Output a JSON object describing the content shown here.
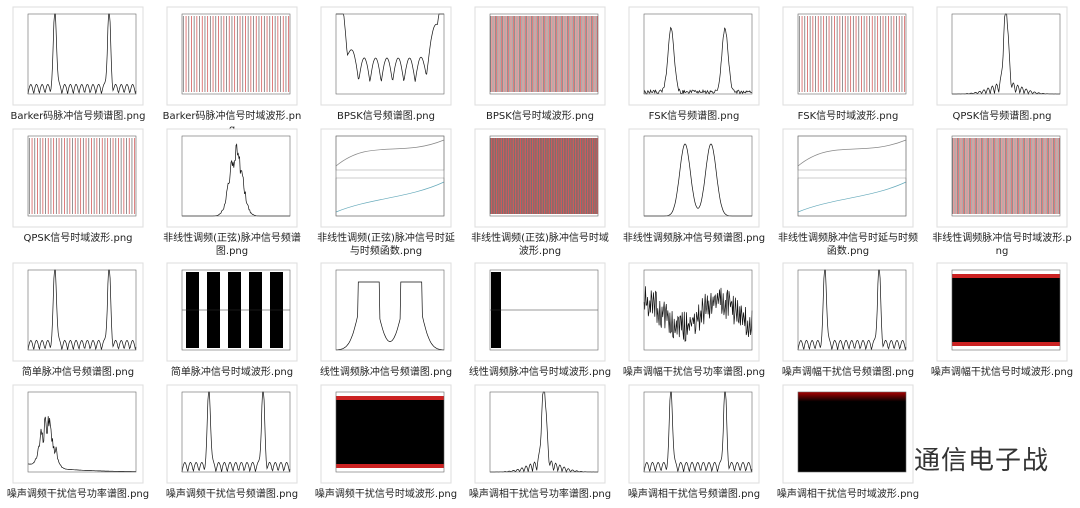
{
  "files": [
    "Barker码脉冲信号频谱图.png",
    "Barker码脉冲信号时域波形.png",
    "BPSK信号频谱图.png",
    "BPSK信号时域波形.png",
    "FSK信号频谱图.png",
    "FSK信号时域波形.png",
    "QPSK信号频谱图.png",
    "QPSK信号时域波形.png",
    "非线性调频(正弦)脉冲信号频谱图.png",
    "非线性调频(正弦)脉冲信号时延与时频函数.png",
    "非线性调频(正弦)脉冲信号时域波形.png",
    "非线性调频脉冲信号频谱图.png",
    "非线性调频脉冲信号时延与时频函数.png",
    "非线性调频脉冲信号时域波形.png",
    "简单脉冲信号频谱图.png",
    "简单脉冲信号时域波形.png",
    "线性调频脉冲信号频谱图.png",
    "线性调频脉冲信号时域波形.png",
    "噪声调幅干扰信号功率谱图.png",
    "噪声调幅干扰信号频谱图.png",
    "噪声调幅干扰信号时域波形.png",
    "噪声调频干扰信号功率谱图.png",
    "噪声调频干扰信号频谱图.png",
    "噪声调频干扰信号时域波形.png",
    "噪声调相干扰信号功率谱图.png",
    "噪声调相干扰信号频谱图.png",
    "噪声调相干扰信号时域波形.png"
  ],
  "watermark": "雷达通信电子战"
}
